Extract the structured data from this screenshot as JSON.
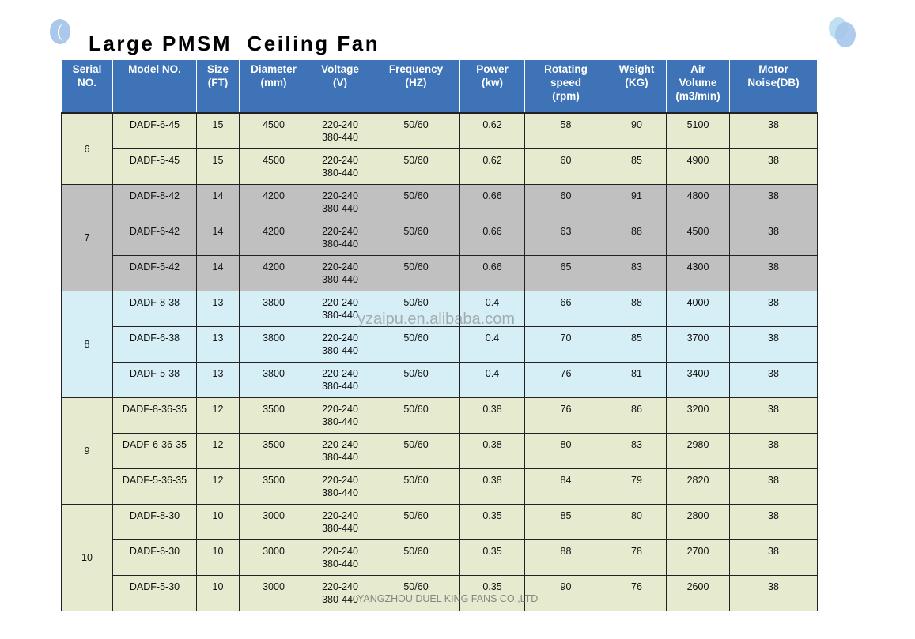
{
  "title": "Large PMSM  Ceiling Fan",
  "watermark": "yzaipu.en.alibaba.com",
  "footer": "YANGZHOU DUEL KING FANS CO.,LTD",
  "colors": {
    "header": "#3e74b7",
    "group_green": "#e6ebcf",
    "group_gray": "#c0c0c0",
    "group_blue": "#d6eef5"
  },
  "headers": [
    [
      "Serial",
      "NO."
    ],
    [
      "Model   NO."
    ],
    [
      "Size",
      "(FT)"
    ],
    [
      "Diameter",
      "(mm)"
    ],
    [
      "Voltage",
      "(V)"
    ],
    [
      "Frequency",
      "(HZ)"
    ],
    [
      "Power",
      "(kw)"
    ],
    [
      "Rotating",
      "speed",
      "(rpm)"
    ],
    [
      "Weight",
      "(KG)"
    ],
    [
      "Air",
      "Volume",
      "(m3/min)"
    ],
    [
      "Motor",
      "Noise(DB)"
    ]
  ],
  "groups": [
    {
      "serial": "6",
      "color": "g",
      "rows": [
        [
          "DADF-6-45",
          "15",
          "4500",
          "220-240",
          "380-440",
          "50/60",
          "0.62",
          "58",
          "90",
          "5100",
          "38"
        ],
        [
          "DADF-5-45",
          "15",
          "4500",
          "220-240",
          "380-440",
          "50/60",
          "0.62",
          "60",
          "85",
          "4900",
          "38"
        ]
      ]
    },
    {
      "serial": "7",
      "color": "k",
      "rows": [
        [
          "DADF-8-42",
          "14",
          "4200",
          "220-240",
          "380-440",
          "50/60",
          "0.66",
          "60",
          "91",
          "4800",
          "38"
        ],
        [
          "DADF-6-42",
          "14",
          "4200",
          "220-240",
          "380-440",
          "50/60",
          "0.66",
          "63",
          "88",
          "4500",
          "38"
        ],
        [
          "DADF-5-42",
          "14",
          "4200",
          "220-240",
          "380-440",
          "50/60",
          "0.66",
          "65",
          "83",
          "4300",
          "38"
        ]
      ]
    },
    {
      "serial": "8",
      "color": "b",
      "rows": [
        [
          "DADF-8-38",
          "13",
          "3800",
          "220-240",
          "380-440",
          "50/60",
          "0.4",
          "66",
          "88",
          "4000",
          "38"
        ],
        [
          "DADF-6-38",
          "13",
          "3800",
          "220-240",
          "380-440",
          "50/60",
          "0.4",
          "70",
          "85",
          "3700",
          "38"
        ],
        [
          "DADF-5-38",
          "13",
          "3800",
          "220-240",
          "380-440",
          "50/60",
          "0.4",
          "76",
          "81",
          "3400",
          "38"
        ]
      ]
    },
    {
      "serial": "9",
      "color": "g",
      "rows": [
        [
          "DADF-8-36-35",
          "12",
          "3500",
          "220-240",
          "380-440",
          "50/60",
          "0.38",
          "76",
          "86",
          "3200",
          "38"
        ],
        [
          "DADF-6-36-35",
          "12",
          "3500",
          "220-240",
          "380-440",
          "50/60",
          "0.38",
          "80",
          "83",
          "2980",
          "38"
        ],
        [
          "DADF-5-36-35",
          "12",
          "3500",
          "220-240",
          "380-440",
          "50/60",
          "0.38",
          "84",
          "79",
          "2820",
          "38"
        ]
      ]
    },
    {
      "serial": "10",
      "color": "g",
      "rows": [
        [
          "DADF-8-30",
          "10",
          "3000",
          "220-240",
          "380-440",
          "50/60",
          "0.35",
          "85",
          "80",
          "2800",
          "38"
        ],
        [
          "DADF-6-30",
          "10",
          "3000",
          "220-240",
          "380-440",
          "50/60",
          "0.35",
          "88",
          "78",
          "2700",
          "38"
        ],
        [
          "DADF-5-30",
          "10",
          "3000",
          "220-240",
          "380-440",
          "50/60",
          "0.35",
          "90",
          "76",
          "2600",
          "38"
        ]
      ]
    }
  ]
}
